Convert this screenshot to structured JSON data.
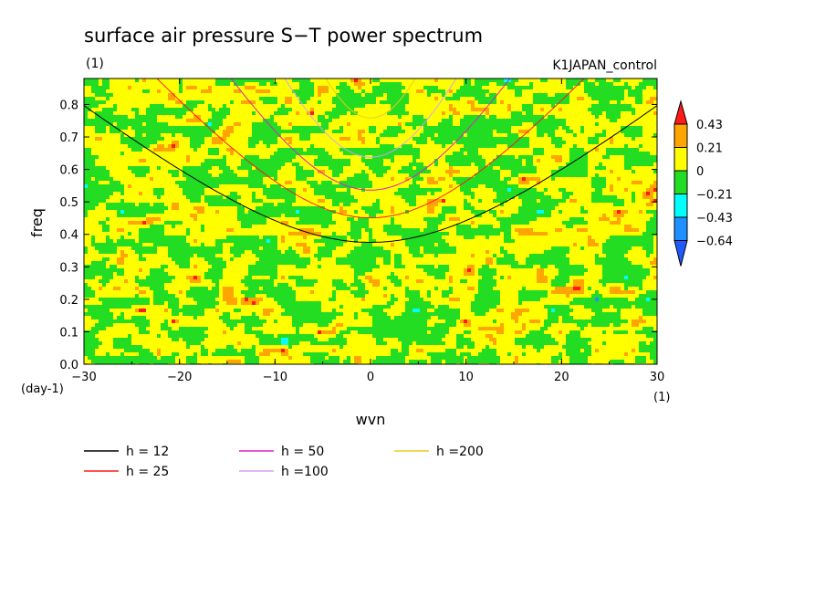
{
  "chart_data": {
    "type": "heatmap",
    "title": "surface air pressure S−T power spectrum",
    "units_label": "(1)",
    "experiment_label": "K1JAPAN_control",
    "xlabel": "wvn",
    "ylabel": "freq",
    "x_units_label": "(1)",
    "y_units_label": "(day-1)",
    "xlim": [
      -30,
      30
    ],
    "ylim": [
      0,
      0.88
    ],
    "x_ticks": [
      -30,
      -20,
      -10,
      0,
      10,
      20,
      30
    ],
    "x_tick_labels": [
      "−30",
      "−20",
      "−10",
      "0",
      "10",
      "20",
      "30"
    ],
    "y_ticks": [
      0,
      0.1,
      0.2,
      0.3,
      0.4,
      0.5,
      0.6,
      0.7,
      0.8
    ],
    "y_tick_labels": [
      "0.0",
      "0.1",
      "0.2",
      "0.3",
      "0.4",
      "0.5",
      "0.6",
      "0.7",
      "0.8"
    ],
    "colorbar": {
      "levels": [
        0.43,
        0.21,
        0,
        -0.21,
        -0.43,
        -0.64
      ],
      "level_labels": [
        "0.43",
        "0.21",
        "0",
        "−0.21",
        "−0.43",
        "−0.64"
      ],
      "colors": [
        "#ff1a1a",
        "#ffa500",
        "#ffff00",
        "#22dd22",
        "#00ffff",
        "#1e90ff",
        "#1e5bff"
      ]
    },
    "series": [
      {
        "name": "h = 12",
        "h": 12,
        "color": "#000000"
      },
      {
        "name": "h = 25",
        "h": 25,
        "color": "#ff1a1a"
      },
      {
        "name": "h = 50",
        "h": 50,
        "color": "#e020c0"
      },
      {
        "name": "h =100",
        "h": 100,
        "color": "#d8a0f0"
      },
      {
        "name": "h =200",
        "h": 200,
        "color": "#f0c820"
      }
    ]
  }
}
